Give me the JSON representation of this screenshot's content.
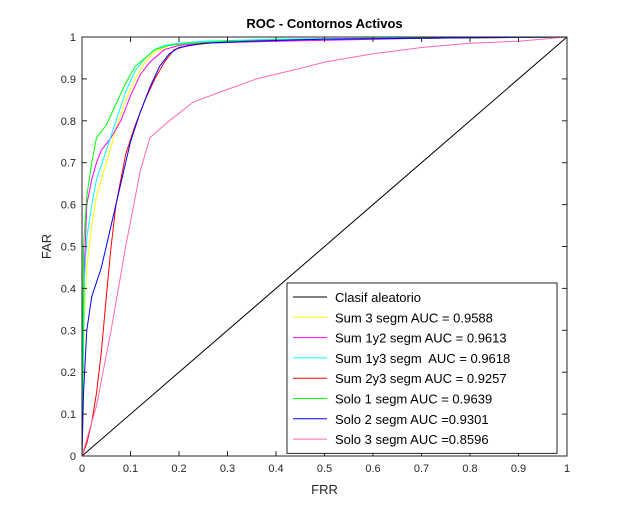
{
  "chart_data": {
    "type": "line",
    "title": "ROC - Contornos Activos",
    "xlabel": "FRR",
    "ylabel": "FAR",
    "xlim": [
      0,
      1
    ],
    "ylim": [
      0,
      1
    ],
    "xticks": [
      "0",
      "0.1",
      "0.2",
      "0.3",
      "0.4",
      "0.5",
      "0.6",
      "0.7",
      "0.8",
      "0.9",
      "1"
    ],
    "yticks": [
      "0",
      "0.1",
      "0.2",
      "0.3",
      "0.4",
      "0.5",
      "0.6",
      "0.7",
      "0.8",
      "0.9",
      "1"
    ],
    "legend_position": "bottom-right",
    "series": [
      {
        "name": "Clasif aleatorio",
        "color": "#000000",
        "x": [
          0,
          1
        ],
        "y": [
          0,
          1
        ]
      },
      {
        "name": "Sum 3 segm AUC = 0.9588",
        "color": "#ffff00",
        "x": [
          0,
          0.005,
          0.01,
          0.02,
          0.03,
          0.05,
          0.07,
          0.09,
          0.11,
          0.13,
          0.15,
          0.18,
          0.22,
          0.3,
          0.5,
          0.8,
          1
        ],
        "y": [
          0,
          0.33,
          0.45,
          0.55,
          0.62,
          0.7,
          0.78,
          0.85,
          0.9,
          0.94,
          0.965,
          0.98,
          0.985,
          0.99,
          0.995,
          0.998,
          1
        ]
      },
      {
        "name": "Sum 1y2 segm AUC = 0.9613",
        "color": "#ff00ff",
        "x": [
          0,
          0.005,
          0.01,
          0.02,
          0.03,
          0.04,
          0.06,
          0.08,
          0.1,
          0.12,
          0.14,
          0.17,
          0.2,
          0.25,
          0.4,
          0.7,
          1
        ],
        "y": [
          0,
          0.45,
          0.6,
          0.66,
          0.7,
          0.73,
          0.76,
          0.8,
          0.86,
          0.91,
          0.94,
          0.97,
          0.98,
          0.985,
          0.99,
          0.997,
          1
        ]
      },
      {
        "name": "Sum 1y3 segm  AUC = 0.9618",
        "color": "#00ffff",
        "x": [
          0,
          0.005,
          0.01,
          0.02,
          0.03,
          0.05,
          0.07,
          0.09,
          0.11,
          0.13,
          0.15,
          0.17,
          0.2,
          0.25,
          0.4,
          0.7,
          1
        ],
        "y": [
          0,
          0.42,
          0.52,
          0.6,
          0.66,
          0.73,
          0.8,
          0.87,
          0.92,
          0.95,
          0.97,
          0.98,
          0.985,
          0.99,
          0.995,
          0.998,
          1
        ]
      },
      {
        "name": "Sum 2y3 segm AUC = 0.9257",
        "color": "#ff0000",
        "x": [
          0,
          0.01,
          0.02,
          0.03,
          0.04,
          0.05,
          0.06,
          0.07,
          0.09,
          0.11,
          0.13,
          0.15,
          0.17,
          0.19,
          0.22,
          0.3,
          0.5,
          0.8,
          1
        ],
        "y": [
          0,
          0.03,
          0.08,
          0.15,
          0.25,
          0.38,
          0.5,
          0.6,
          0.72,
          0.79,
          0.85,
          0.9,
          0.94,
          0.97,
          0.98,
          0.99,
          0.995,
          0.998,
          1
        ]
      },
      {
        "name": "Solo 1 segm AUC = 0.9639",
        "color": "#00ff00",
        "x": [
          0,
          0.003,
          0.01,
          0.02,
          0.03,
          0.05,
          0.07,
          0.09,
          0.11,
          0.13,
          0.15,
          0.18,
          0.22,
          0.3,
          0.5,
          0.8,
          1
        ],
        "y": [
          0,
          0.5,
          0.62,
          0.7,
          0.76,
          0.79,
          0.84,
          0.89,
          0.93,
          0.95,
          0.97,
          0.98,
          0.985,
          0.99,
          0.995,
          0.998,
          1
        ]
      },
      {
        "name": "Solo 2 segm AUC =0.9301",
        "color": "#0000ff",
        "x": [
          0,
          0.003,
          0.01,
          0.02,
          0.04,
          0.06,
          0.08,
          0.1,
          0.12,
          0.14,
          0.16,
          0.18,
          0.2,
          0.25,
          0.35,
          0.5,
          0.8,
          1
        ],
        "y": [
          0,
          0.15,
          0.3,
          0.38,
          0.45,
          0.55,
          0.65,
          0.75,
          0.82,
          0.88,
          0.93,
          0.96,
          0.975,
          0.985,
          0.99,
          0.995,
          0.998,
          1
        ]
      },
      {
        "name": "Solo 3 segm AUC =0.8596",
        "color": "#ff69b4",
        "x": [
          0,
          0.03,
          0.06,
          0.09,
          0.12,
          0.14,
          0.18,
          0.23,
          0.3,
          0.36,
          0.45,
          0.5,
          0.6,
          0.7,
          0.8,
          0.9,
          1
        ],
        "y": [
          0,
          0.12,
          0.3,
          0.5,
          0.68,
          0.76,
          0.8,
          0.845,
          0.875,
          0.9,
          0.925,
          0.94,
          0.96,
          0.975,
          0.985,
          0.99,
          1
        ]
      }
    ]
  }
}
